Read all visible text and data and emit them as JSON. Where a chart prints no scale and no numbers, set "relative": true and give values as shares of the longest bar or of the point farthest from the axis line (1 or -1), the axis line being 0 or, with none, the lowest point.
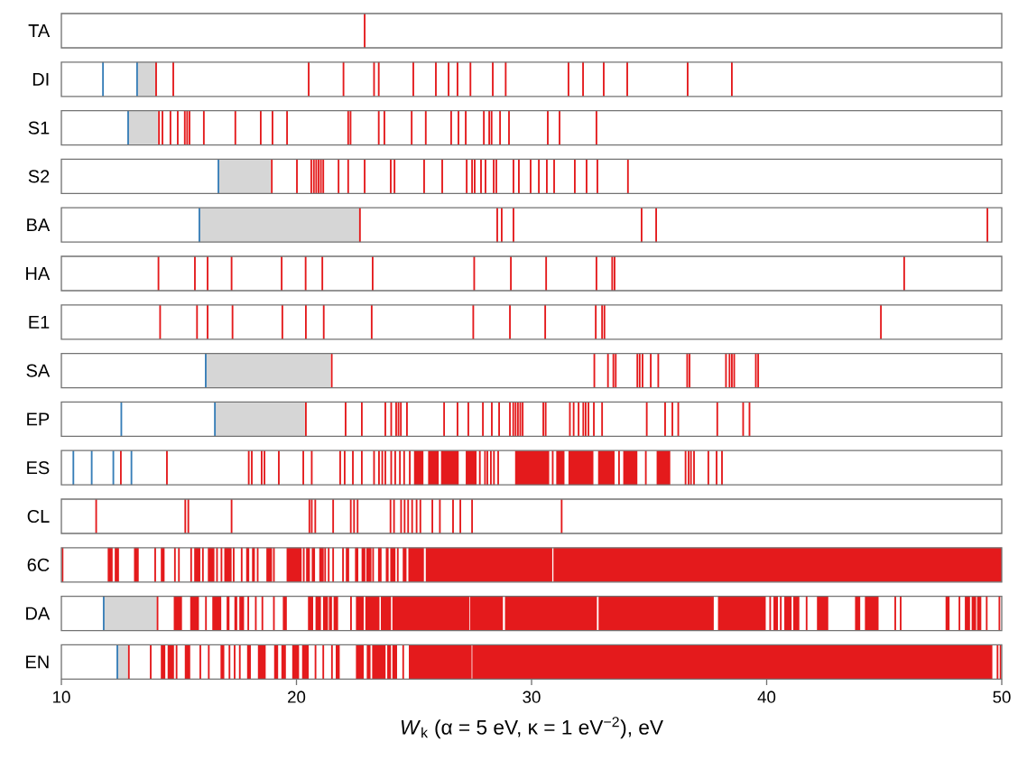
{
  "chart_data": [
    {
      "type": "bar",
      "relative": true,
      "ylabel": "TA",
      "xlim": [
        10,
        50
      ],
      "tick_labels": false,
      "series": [
        {
          "color": "#e41a1c",
          "x": [
            22.9
          ],
          "values": [
            1
          ]
        }
      ]
    },
    {
      "type": "bar",
      "relative": true,
      "ylabel": "DI",
      "xlim": [
        10,
        50
      ],
      "tick_labels": false,
      "bands": [
        {
          "axis": "x",
          "from": 13.22,
          "to": 14.03,
          "color": "#d6d6d6"
        }
      ],
      "series": [
        {
          "color": "#377eb8",
          "x": [
            11.77,
            13.22
          ],
          "values": [
            1,
            1
          ]
        },
        {
          "color": "#e41a1c",
          "x": [
            14.03,
            14.76,
            20.52,
            22.0,
            23.3,
            23.5,
            24.97,
            25.93,
            26.47,
            26.85,
            27.4,
            28.35,
            28.9,
            31.57,
            32.19,
            33.07,
            34.07,
            36.64,
            38.52
          ],
          "values": [
            1,
            1,
            1,
            1,
            1,
            1,
            1,
            1,
            1,
            1,
            1,
            1,
            1,
            1,
            1,
            1,
            1,
            1,
            1
          ]
        }
      ]
    },
    {
      "type": "bar",
      "relative": true,
      "ylabel": "S1",
      "xlim": [
        10,
        50
      ],
      "tick_labels": false,
      "bands": [
        {
          "axis": "x",
          "from": 12.84,
          "to": 14.1,
          "color": "#d6d6d6"
        }
      ],
      "series": [
        {
          "color": "#377eb8",
          "x": [
            12.84
          ],
          "values": [
            1
          ]
        },
        {
          "color": "#e41a1c",
          "x": [
            14.15,
            14.3,
            14.64,
            14.95,
            15.25,
            15.35,
            15.45,
            16.06,
            17.4,
            18.48,
            18.98,
            19.6,
            22.2,
            22.3,
            23.5,
            23.74,
            24.9,
            25.5,
            26.58,
            26.89,
            27.2,
            27.97,
            28.2,
            28.3,
            28.66,
            29.04,
            30.69,
            31.19,
            32.76
          ],
          "values": [
            1,
            1,
            1,
            1,
            1,
            1,
            1,
            1,
            1,
            1,
            1,
            1,
            1,
            1,
            1,
            1,
            1,
            1,
            1,
            1,
            1,
            1,
            1,
            1,
            1,
            1,
            1,
            1,
            1
          ]
        }
      ]
    },
    {
      "type": "bar",
      "relative": true,
      "ylabel": "S2",
      "xlim": [
        10,
        50
      ],
      "tick_labels": false,
      "bands": [
        {
          "axis": "x",
          "from": 16.68,
          "to": 18.9,
          "color": "#d6d6d6"
        }
      ],
      "series": [
        {
          "color": "#377eb8",
          "x": [
            16.68
          ],
          "values": [
            1
          ]
        },
        {
          "color": "#e41a1c",
          "x": [
            18.95,
            20.02,
            20.63,
            20.74,
            20.84,
            20.94,
            21.04,
            21.14,
            21.79,
            22.2,
            22.9,
            24.01,
            24.17,
            25.43,
            26.2,
            27.24,
            27.47,
            27.58,
            27.85,
            28.04,
            28.39,
            28.5,
            29.23,
            29.46,
            29.96,
            30.31,
            30.65,
            30.96,
            31.84,
            32.34,
            32.8,
            34.1
          ],
          "values": [
            1,
            1,
            1,
            1,
            1,
            1,
            1,
            1,
            1,
            1,
            1,
            1,
            1,
            1,
            1,
            1,
            1,
            1,
            1,
            1,
            1,
            1,
            1,
            1,
            1,
            1,
            1,
            1,
            1,
            1,
            1,
            1
          ]
        }
      ]
    },
    {
      "type": "bar",
      "relative": true,
      "ylabel": "BA",
      "xlim": [
        10,
        50
      ],
      "tick_labels": false,
      "bands": [
        {
          "axis": "x",
          "from": 15.87,
          "to": 22.67,
          "color": "#d6d6d6"
        }
      ],
      "series": [
        {
          "color": "#377eb8",
          "x": [
            15.87
          ],
          "values": [
            1
          ]
        },
        {
          "color": "#e41a1c",
          "x": [
            22.7,
            28.54,
            28.73,
            29.23,
            34.68,
            35.3,
            49.39
          ],
          "values": [
            1,
            1,
            1,
            1,
            1,
            1,
            1
          ]
        }
      ]
    },
    {
      "type": "bar",
      "relative": true,
      "ylabel": "HA",
      "xlim": [
        10,
        50
      ],
      "tick_labels": false,
      "series": [
        {
          "color": "#e41a1c",
          "x": [
            14.13,
            15.68,
            16.22,
            17.24,
            19.37,
            20.39,
            21.1,
            23.24,
            27.56,
            29.12,
            30.62,
            32.76,
            33.43,
            33.53,
            45.85
          ],
          "values": [
            1,
            1,
            1,
            1,
            1,
            1,
            1,
            1,
            1,
            1,
            1,
            1,
            1,
            1,
            1
          ]
        }
      ]
    },
    {
      "type": "bar",
      "relative": true,
      "ylabel": "E1",
      "xlim": [
        10,
        50
      ],
      "tick_labels": false,
      "series": [
        {
          "color": "#e41a1c",
          "x": [
            14.2,
            15.77,
            16.22,
            17.28,
            19.4,
            20.4,
            21.16,
            23.2,
            27.52,
            29.08,
            30.58,
            32.73,
            33.0,
            33.1,
            44.86
          ],
          "values": [
            1,
            1,
            1,
            1,
            1,
            1,
            1,
            1,
            1,
            1,
            1,
            1,
            1,
            1,
            1
          ]
        }
      ]
    },
    {
      "type": "bar",
      "relative": true,
      "ylabel": "SA",
      "xlim": [
        10,
        50
      ],
      "tick_labels": false,
      "bands": [
        {
          "axis": "x",
          "from": 16.14,
          "to": 21.44,
          "color": "#d6d6d6"
        }
      ],
      "series": [
        {
          "color": "#377eb8",
          "x": [
            16.14
          ],
          "values": [
            1
          ]
        },
        {
          "color": "#e41a1c",
          "x": [
            21.5,
            32.67,
            33.25,
            33.48,
            33.58,
            34.5,
            34.6,
            34.72,
            35.07,
            35.39,
            36.62,
            36.72,
            38.27,
            38.42,
            38.52,
            38.62,
            39.54,
            39.64
          ],
          "values": [
            1,
            1,
            1,
            1,
            1,
            1,
            1,
            1,
            1,
            1,
            1,
            1,
            1,
            1,
            1,
            1,
            1,
            1
          ]
        }
      ]
    },
    {
      "type": "bar",
      "relative": true,
      "ylabel": "EP",
      "xlim": [
        10,
        50
      ],
      "tick_labels": false,
      "bands": [
        {
          "axis": "x",
          "from": 16.53,
          "to": 20.36,
          "color": "#d6d6d6"
        }
      ],
      "series": [
        {
          "color": "#377eb8",
          "x": [
            12.55,
            16.53
          ],
          "values": [
            1,
            1
          ]
        },
        {
          "color": "#e41a1c",
          "x": [
            20.4,
            22.09,
            22.78,
            23.78,
            24.03,
            24.24,
            24.34,
            24.44,
            24.7,
            26.28,
            26.85,
            27.31,
            27.93,
            28.31,
            28.62,
            29.08,
            29.22,
            29.32,
            29.42,
            29.52,
            29.62,
            30.5,
            30.6,
            31.63,
            31.79,
            32.0,
            32.2,
            32.3,
            32.42,
            32.65,
            33.0,
            34.9,
            35.68,
            35.99,
            36.24,
            37.9,
            39.0,
            39.27
          ],
          "values": [
            1,
            1,
            1,
            1,
            1,
            1,
            1,
            1,
            1,
            1,
            1,
            1,
            1,
            1,
            1,
            1,
            1,
            1,
            1,
            1,
            1,
            1,
            1,
            1,
            1,
            1,
            1,
            1,
            1,
            1,
            1,
            1,
            1,
            1,
            1,
            1,
            1,
            1
          ]
        }
      ]
    },
    {
      "type": "bar",
      "relative": true,
      "ylabel": "ES",
      "xlim": [
        10,
        50
      ],
      "tick_labels": false,
      "series": [
        {
          "color": "#377eb8",
          "x": [
            10.51,
            11.29,
            12.21,
            12.98
          ],
          "values": [
            1,
            1,
            1,
            1
          ]
        },
        {
          "color": "#e41a1c",
          "x": [
            12.53,
            14.49,
            17.97,
            18.1,
            18.52,
            18.64,
            19.25,
            20.29,
            20.65,
            21.86,
            22.05,
            22.4,
            22.78,
            23.3,
            23.51,
            23.65,
            23.78,
            24.03,
            24.2,
            24.4,
            24.58,
            24.82,
            27.8,
            28.02,
            28.12,
            28.27,
            28.4,
            28.58,
            30.9,
            33.72,
            34.86,
            36.55,
            36.68,
            36.78,
            36.91,
            37.52,
            37.87,
            38.1
          ],
          "values": [
            1,
            1,
            1,
            1,
            1,
            1,
            1,
            1,
            1,
            1,
            1,
            1,
            1,
            1,
            1,
            1,
            1,
            1,
            1,
            1,
            1,
            1,
            1,
            1,
            1,
            1,
            1,
            1,
            1,
            1,
            1,
            1,
            1,
            1,
            1,
            1,
            1,
            1
          ]
        },
        {
          "type": "area",
          "color": "#e41a1c",
          "x": [
            25.0,
            25.0,
            25.4,
            25.4,
            25.6,
            25.6,
            26.05,
            26.05,
            26.15,
            26.15,
            26.9,
            26.9,
            27.2,
            27.2,
            27.66,
            27.66,
            29.3,
            29.3,
            30.75,
            30.75,
            31.05,
            31.05,
            31.4,
            31.4,
            31.57,
            31.57,
            32.63,
            32.63,
            32.83,
            32.83,
            33.53,
            33.53,
            33.9,
            33.9,
            34.5,
            34.5,
            35.32,
            35.32,
            35.9,
            35.9
          ],
          "values": [
            0,
            1,
            1,
            0,
            0,
            1,
            1,
            0,
            0,
            1,
            1,
            0,
            0,
            1,
            1,
            0,
            0,
            1,
            1,
            0,
            0,
            1,
            1,
            0,
            0,
            1,
            1,
            0,
            0,
            1,
            1,
            0,
            0,
            1,
            1,
            0,
            0,
            1,
            1,
            0
          ]
        }
      ]
    },
    {
      "type": "bar",
      "relative": true,
      "ylabel": "CL",
      "xlim": [
        10,
        50
      ],
      "tick_labels": false,
      "series": [
        {
          "color": "#e41a1c",
          "x": [
            11.48,
            15.27,
            15.4,
            17.24,
            20.55,
            20.65,
            20.8,
            21.56,
            22.31,
            22.45,
            22.6,
            24.0,
            24.15,
            24.45,
            24.6,
            24.75,
            24.92,
            25.11,
            25.27,
            25.78,
            26.1,
            26.66,
            26.97,
            27.47,
            31.28
          ],
          "values": [
            1,
            1,
            1,
            1,
            1,
            1,
            1,
            1,
            1,
            1,
            1,
            1,
            1,
            1,
            1,
            1,
            1,
            1,
            1,
            1,
            1,
            1,
            1,
            1,
            1
          ]
        }
      ]
    },
    {
      "type": "bar",
      "relative": true,
      "ylabel": "6C",
      "xlim": [
        10,
        50
      ],
      "tick_labels": false,
      "series": [
        {
          "color": "#e41a1c",
          "x": [
            10.05,
            13.99,
            14.83,
            15.0,
            15.52,
            16.02,
            16.62,
            16.81,
            17.33,
            17.67,
            18.35,
            19.04,
            20.31,
            21.22,
            21.37,
            21.56,
            21.98,
            23.26,
            24.31
          ],
          "values": [
            1,
            1,
            1,
            1,
            1,
            1,
            1,
            1,
            1,
            1,
            1,
            1,
            1,
            1,
            1,
            1,
            1,
            1,
            1
          ]
        },
        {
          "type": "area",
          "color": "#e41a1c",
          "x": [
            11.97,
            11.97,
            12.18,
            12.18,
            12.27,
            12.27,
            12.45,
            12.45,
            13.09,
            13.09,
            13.29,
            13.29,
            14.23,
            14.23,
            14.39,
            14.39,
            15.65,
            15.65,
            15.91,
            15.91,
            16.23,
            16.23,
            16.51,
            16.51,
            16.93,
            16.93,
            17.24,
            17.24,
            17.86,
            17.86,
            17.99,
            17.99,
            18.11,
            18.11,
            18.23,
            18.23,
            18.72,
            18.72,
            18.96,
            18.96,
            19.58,
            19.58,
            20.22,
            20.22,
            20.41,
            20.41,
            20.57,
            20.57,
            20.65,
            20.65,
            20.79,
            20.79,
            20.97,
            20.97,
            21.16,
            21.16,
            22.1,
            22.1,
            22.24,
            22.24,
            22.49,
            22.49,
            22.63,
            22.63,
            22.77,
            22.77,
            22.93,
            22.93,
            22.97,
            22.97,
            23.19,
            23.19,
            23.47,
            23.47,
            23.62,
            23.62,
            23.8,
            23.8,
            23.92,
            23.92,
            23.99,
            23.99,
            24.21,
            24.21,
            24.52,
            24.52,
            24.68,
            24.68,
            24.76,
            24.76,
            25.42,
            25.42,
            25.5,
            25.5,
            30.88,
            30.88,
            30.93,
            30.93,
            50,
            50
          ],
          "values": [
            0,
            1,
            1,
            0,
            0,
            1,
            1,
            0,
            0,
            1,
            1,
            0,
            0,
            1,
            1,
            0,
            0,
            1,
            1,
            0,
            0,
            1,
            1,
            0,
            0,
            1,
            1,
            0,
            0,
            1,
            1,
            0,
            0,
            1,
            1,
            0,
            0,
            1,
            1,
            0,
            0,
            1,
            1,
            0,
            0,
            1,
            1,
            0,
            0,
            1,
            1,
            0,
            0,
            1,
            1,
            0,
            0,
            1,
            1,
            0,
            0,
            1,
            1,
            0,
            0,
            1,
            1,
            0,
            0,
            1,
            1,
            0,
            0,
            1,
            1,
            0,
            0,
            1,
            1,
            0,
            0,
            1,
            1,
            0,
            0,
            1,
            1,
            0,
            0,
            1,
            1,
            0,
            0,
            1,
            1,
            0,
            0,
            1,
            1,
            0
          ]
        }
      ]
    },
    {
      "type": "bar",
      "relative": true,
      "ylabel": "DA",
      "xlim": [
        10,
        50
      ],
      "tick_labels": false,
      "bands": [
        {
          "axis": "x",
          "from": 11.8,
          "to": 14.06,
          "color": "#d6d6d6"
        }
      ],
      "series": [
        {
          "color": "#377eb8",
          "x": [
            11.8
          ],
          "values": [
            1
          ]
        },
        {
          "color": "#e41a1c",
          "x": [
            14.09,
            16.15,
            17.95,
            18.27,
            18.55,
            19.04,
            22.32,
            40.15,
            40.6,
            41.7,
            45.47,
            45.7,
            48.2,
            49.36,
            49.9
          ],
          "values": [
            1,
            1,
            1,
            1,
            1,
            1,
            1,
            1,
            1,
            1,
            1,
            1,
            1,
            1,
            1
          ]
        },
        {
          "type": "area",
          "color": "#e41a1c",
          "x": [
            14.78,
            14.78,
            15.13,
            15.13,
            15.48,
            15.48,
            15.85,
            15.85,
            16.42,
            16.42,
            16.8,
            16.8,
            17.03,
            17.03,
            17.15,
            17.15,
            17.36,
            17.36,
            17.48,
            17.48,
            17.57,
            17.57,
            17.77,
            17.77,
            19.42,
            19.42,
            19.59,
            19.59,
            20.49,
            20.49,
            20.71,
            20.71,
            20.81,
            20.81,
            21.04,
            21.04,
            21.13,
            21.13,
            21.34,
            21.34,
            21.38,
            21.38,
            21.51,
            21.51,
            21.58,
            21.58,
            21.77,
            21.77,
            22.53,
            22.53,
            22.86,
            22.86,
            22.93,
            22.93,
            23.53,
            23.53,
            23.59,
            23.59,
            24.02,
            24.02,
            24.08,
            24.08,
            27.35,
            27.35,
            27.38,
            27.38,
            28.78,
            28.78,
            28.87,
            28.87,
            32.78,
            32.78,
            32.85,
            32.85,
            37.75,
            37.75,
            37.93,
            37.93,
            39.96,
            39.96,
            40.29,
            40.29,
            40.48,
            40.48,
            40.75,
            40.75,
            41.06,
            41.06,
            41.13,
            41.13,
            41.39,
            41.39,
            42.14,
            42.14,
            42.62,
            42.62,
            43.76,
            43.76,
            43.98,
            43.98,
            44.18,
            44.18,
            44.76,
            44.76,
            47.61,
            47.61,
            47.78,
            47.78,
            48.43,
            48.43,
            48.65,
            48.65,
            48.72,
            48.72,
            48.91,
            48.91,
            48.95,
            48.95,
            49.13,
            49.13
          ],
          "values": [
            0,
            1,
            1,
            0,
            0,
            1,
            1,
            0,
            0,
            1,
            1,
            0,
            0,
            1,
            1,
            0,
            0,
            1,
            1,
            0,
            0,
            1,
            1,
            0,
            0,
            1,
            1,
            0,
            0,
            1,
            1,
            0,
            0,
            1,
            1,
            0,
            0,
            1,
            1,
            0,
            0,
            1,
            1,
            0,
            0,
            1,
            1,
            0,
            0,
            1,
            1,
            0,
            0,
            1,
            1,
            0,
            0,
            1,
            1,
            0,
            0,
            1,
            1,
            0,
            0,
            1,
            1,
            0,
            0,
            1,
            1,
            0,
            0,
            1,
            1,
            0,
            0,
            1,
            1,
            0,
            0,
            1,
            1,
            0,
            0,
            1,
            1,
            0,
            0,
            1,
            1,
            0,
            0,
            1,
            1,
            0,
            0,
            1,
            1,
            0,
            0,
            1,
            1,
            0,
            0,
            1,
            1,
            0,
            0,
            1,
            1,
            0,
            0,
            1,
            1,
            0,
            0,
            1,
            1,
            0
          ]
        }
      ]
    },
    {
      "type": "bar",
      "relative": true,
      "ylabel": "EN",
      "xlim": [
        10,
        50
      ],
      "tick_labels": "x",
      "xticks": [
        10,
        20,
        30,
        40,
        50
      ],
      "xlabel": "*W*$_{k}$ (α = 5 eV, κ = 1 eV$^{−2}$), eV",
      "bands": [
        {
          "axis": "x",
          "from": 12.38,
          "to": 12.83,
          "color": "#d6d6d6"
        }
      ],
      "series": [
        {
          "color": "#377eb8",
          "x": [
            12.38
          ],
          "values": [
            1
          ]
        },
        {
          "color": "#e41a1c",
          "x": [
            12.87,
            13.8,
            14.9,
            15.91,
            16.27,
            17.15,
            17.37,
            17.59,
            20.81,
            21.14,
            21.51,
            24.54,
            49.82,
            49.95
          ],
          "values": [
            1,
            1,
            1,
            1,
            1,
            1,
            1,
            1,
            1,
            1,
            1,
            1,
            1,
            1
          ]
        },
        {
          "type": "area",
          "color": "#e41a1c",
          "x": [
            14.23,
            14.23,
            14.42,
            14.42,
            14.52,
            14.52,
            14.79,
            14.79,
            15.25,
            15.25,
            15.48,
            15.48,
            16.77,
            16.77,
            16.93,
            16.93,
            17.9,
            17.9,
            18.06,
            18.06,
            18.36,
            18.36,
            18.69,
            18.69,
            19.05,
            19.05,
            19.22,
            19.22,
            19.36,
            19.36,
            19.55,
            19.55,
            19.82,
            19.82,
            20.11,
            20.11,
            20.24,
            20.24,
            20.52,
            20.52,
            21.67,
            21.67,
            21.84,
            21.84,
            22.53,
            22.53,
            22.86,
            22.86,
            22.99,
            22.99,
            23.15,
            23.15,
            23.22,
            23.22,
            23.79,
            23.79,
            23.86,
            23.86,
            24.02,
            24.02,
            24.08,
            24.08,
            24.28,
            24.28,
            24.78,
            24.78,
            27.45,
            27.45,
            27.48,
            27.48,
            49.6,
            49.6
          ],
          "values": [
            0,
            1,
            1,
            0,
            0,
            1,
            1,
            0,
            0,
            1,
            1,
            0,
            0,
            1,
            1,
            0,
            0,
            1,
            1,
            0,
            0,
            1,
            1,
            0,
            0,
            1,
            1,
            0,
            0,
            1,
            1,
            0,
            0,
            1,
            1,
            0,
            0,
            1,
            1,
            0,
            0,
            1,
            1,
            0,
            0,
            1,
            1,
            0,
            0,
            1,
            1,
            0,
            0,
            1,
            1,
            0,
            0,
            1,
            1,
            0,
            0,
            1,
            1,
            0,
            0,
            1,
            1,
            0,
            0,
            1,
            1,
            0
          ]
        }
      ]
    }
  ]
}
